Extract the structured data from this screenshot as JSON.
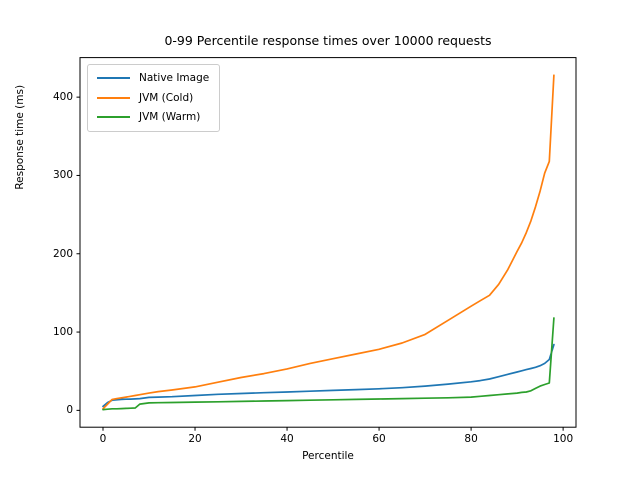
{
  "figure": {
    "title": "0-99 Percentile response times over 10000 requests",
    "background_color": "#ffffff",
    "axes_edge_color": "#000000"
  },
  "chart_data": {
    "type": "line",
    "title": "0-99 Percentile response times over 10000 requests",
    "xlabel": "Percentile",
    "ylabel": "Response time (ms)",
    "xlim": [
      -5,
      102.8
    ],
    "ylim": [
      -21.5,
      450.5
    ],
    "xticks": [
      0,
      20,
      40,
      60,
      80,
      100
    ],
    "yticks": [
      0,
      100,
      200,
      300,
      400
    ],
    "grid": false,
    "legend_position": "upper left",
    "x": [
      0,
      1,
      2,
      3,
      4,
      5,
      6,
      7,
      8,
      10,
      12,
      15,
      20,
      25,
      30,
      35,
      40,
      45,
      50,
      55,
      60,
      65,
      70,
      75,
      80,
      82,
      84,
      86,
      88,
      90,
      91,
      92,
      93,
      94,
      95,
      96,
      97,
      98
    ],
    "series": [
      {
        "name": "Native Image",
        "color": "#1f77b4",
        "values": [
          5,
          10,
          13,
          13.5,
          14,
          14.2,
          14.4,
          14.6,
          15,
          16.5,
          17,
          17.5,
          19,
          20.5,
          21.5,
          22.5,
          23.5,
          24.5,
          25.5,
          26.5,
          27.5,
          29,
          31,
          33.5,
          36.5,
          38,
          40,
          43,
          46,
          49,
          50.5,
          52,
          53.5,
          55,
          57,
          60,
          65,
          84
        ]
      },
      {
        "name": "JVM (Cold)",
        "color": "#ff7f0e",
        "values": [
          2,
          8,
          14,
          15,
          16,
          17,
          18,
          19,
          20,
          22,
          24,
          26,
          30,
          36,
          42,
          47,
          53,
          60,
          66,
          72,
          78,
          86,
          97,
          115,
          133,
          140,
          147,
          161,
          180,
          203,
          214,
          227,
          242,
          260,
          280,
          303,
          318,
          428
        ]
      },
      {
        "name": "JVM (Warm)",
        "color": "#2ca02c",
        "values": [
          1,
          1.5,
          2,
          2,
          2.2,
          2.5,
          2.8,
          3,
          8,
          9.5,
          9.8,
          10,
          10.5,
          11,
          11.5,
          12,
          12.5,
          13,
          13.5,
          14,
          14.5,
          15,
          15.5,
          16,
          17,
          18,
          19,
          20,
          21,
          22,
          23,
          23.5,
          25,
          28,
          31,
          33,
          35,
          118
        ]
      }
    ]
  }
}
